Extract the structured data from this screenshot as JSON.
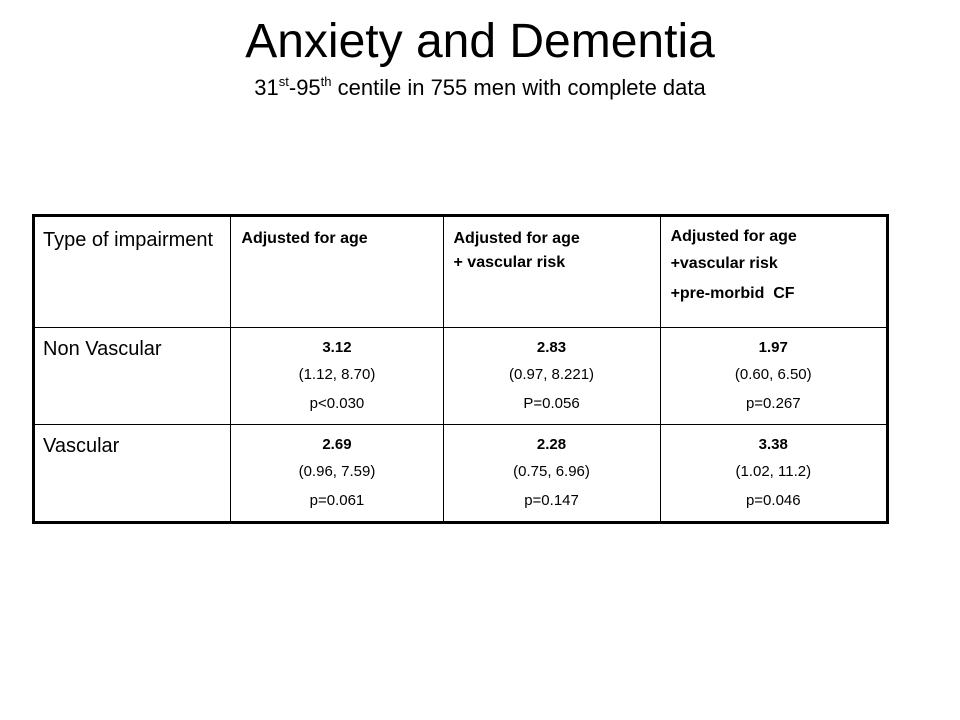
{
  "slide": {
    "title": "Anxiety and Dementia",
    "subtitle": {
      "part1": "31",
      "sup1": "st",
      "part2": "-95",
      "sup2": "th",
      "part3": " centile in 755 men with complete data"
    }
  },
  "table": {
    "headers": {
      "type": "Type of impairment",
      "col1": "Adjusted for age",
      "col2_line1": "Adjusted for age",
      "col2_line2": "+ vascular risk",
      "col3_line1": "Adjusted for age",
      "col3_line2": "+vascular risk",
      "col3_line3": "+pre-morbid  CF"
    },
    "rows": [
      {
        "label": "Non Vascular",
        "cells": [
          {
            "estimate": "3.12",
            "ci": "(1.12, 8.70)",
            "p": "p<0.030"
          },
          {
            "estimate": "2.83",
            "ci": "(0.97, 8.221)",
            "p": "P=0.056"
          },
          {
            "estimate": "1.97",
            "ci": "(0.60, 6.50)",
            "p": "p=0.267"
          }
        ]
      },
      {
        "label": "Vascular",
        "cells": [
          {
            "estimate": "2.69",
            "ci": "(0.96, 7.59)",
            "p": "p=0.061"
          },
          {
            "estimate": "2.28",
            "ci": "(0.75, 6.96)",
            "p": "p=0.147"
          },
          {
            "estimate": "3.38",
            "ci": "(1.02, 11.2)",
            "p": "p=0.046"
          }
        ]
      }
    ]
  }
}
